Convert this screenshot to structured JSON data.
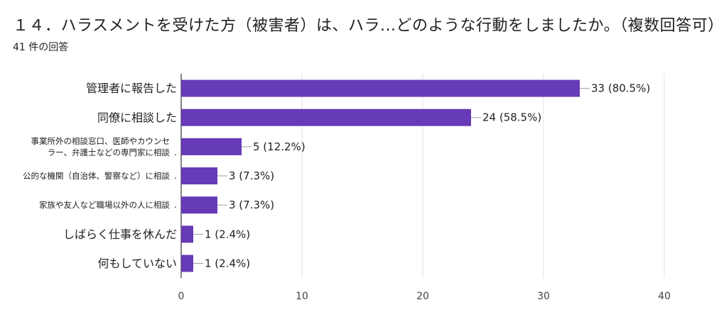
{
  "question": {
    "title": "１４．ハラスメントを受けた方（被害者）は、ハラ...どのような行動をしましたか。（複数回答可）",
    "response_count": "41 件の回答"
  },
  "colors": {
    "bar": "#673ab7",
    "grid": "#e0e0e0",
    "axis": "#333333",
    "leader": "#9e9e9e"
  },
  "chart_data": {
    "type": "bar",
    "orientation": "horizontal",
    "categories": [
      [
        "管理者に報告した"
      ],
      [
        "同僚に相談した"
      ],
      [
        "事業所外の相談窓口、医師やカウンセ",
        "ラー、弁護士などの専門家に相談"
      ],
      [
        "公的な機関（自治体、警察など）に相談"
      ],
      [
        "家族や友人など職場以外の人に相談"
      ],
      [
        "しばらく仕事を休んだ"
      ],
      [
        "何もしていない"
      ]
    ],
    "values": [
      33,
      24,
      5,
      3,
      3,
      1,
      1
    ],
    "value_labels": [
      "33 (80.5%)",
      "24 (58.5%)",
      "5 (12.2%)",
      "3 (7.3%)",
      "3 (7.3%)",
      "1 (2.4%)",
      "1 (2.4%)"
    ],
    "truncated": [
      false,
      false,
      true,
      true,
      true,
      false,
      false
    ],
    "truncation_mark": ".",
    "xlim": [
      0,
      40
    ],
    "xticks": [
      0,
      10,
      20,
      30,
      40
    ],
    "grid": true,
    "legend": "none"
  }
}
